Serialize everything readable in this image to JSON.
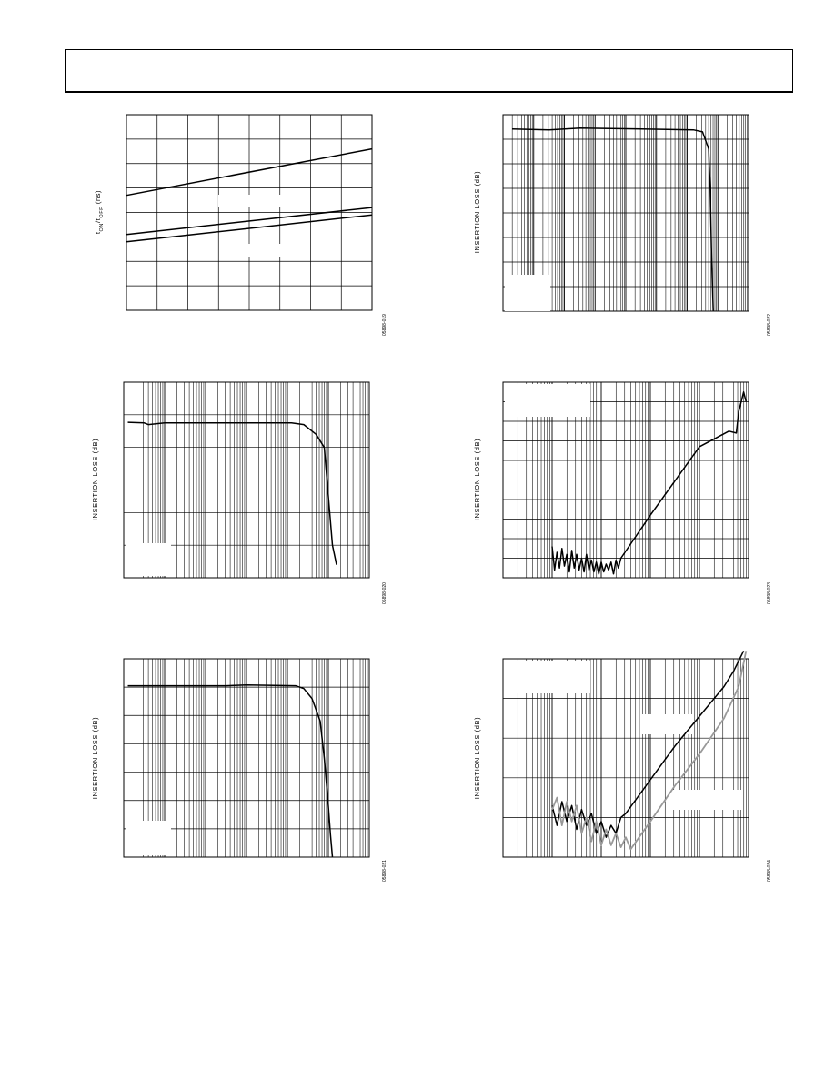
{
  "page": {
    "header_text": ""
  },
  "chart_data": [
    {
      "id": "fig-ton-toff",
      "type": "line",
      "title": "",
      "ylabel": "tON/tOFF (ns)",
      "ylabel_main": "t",
      "ylabel_sub1": "ON",
      "ylabel_mid": "/t",
      "ylabel_sub2": "OFF",
      "ylabel_unit": " (ns)",
      "xlabel": "",
      "xscale": "linear",
      "figure_id": "05898-019",
      "x_range": [
        0,
        8
      ],
      "y_range": [
        0,
        8
      ],
      "grid": {
        "x_divisions": 8,
        "y_divisions": 8
      },
      "series": [
        {
          "values": [
            [
              0,
              4.7
            ],
            [
              8,
              6.6
            ]
          ]
        },
        {
          "values": [
            [
              0,
              3.1
            ],
            [
              8,
              4.2
            ]
          ]
        },
        {
          "values": [
            [
              0,
              2.8
            ],
            [
              8,
              3.9
            ]
          ]
        }
      ],
      "legend_boxes": 2
    },
    {
      "id": "fig-insertion-loss-a",
      "type": "line",
      "title": "",
      "ylabel": "INSERTION LOSS (dB)",
      "xlabel": "",
      "xscale": "log",
      "figure_id": "05898-022",
      "x_decades": 8,
      "y_divisions": 8,
      "series": [
        {
          "values": [
            [
              0.3,
              7.42
            ],
            [
              1.5,
              7.38
            ],
            [
              2.5,
              7.45
            ],
            [
              4.5,
              7.42
            ],
            [
              6.2,
              7.38
            ],
            [
              6.5,
              7.3
            ],
            [
              6.7,
              6.6
            ],
            [
              6.75,
              5.0
            ],
            [
              6.8,
              2.0
            ],
            [
              6.85,
              0.0
            ]
          ]
        }
      ],
      "legend_boxes": 1
    },
    {
      "id": "fig-insertion-loss-b",
      "type": "line",
      "title": "",
      "ylabel": "INSERTION LOSS (dB)",
      "xlabel": "",
      "xscale": "log",
      "figure_id": "05898-020",
      "x_decades": 6,
      "y_divisions": 6,
      "series": [
        {
          "values": [
            [
              0.1,
              4.77
            ],
            [
              0.5,
              4.75
            ],
            [
              0.6,
              4.7
            ],
            [
              1.0,
              4.75
            ],
            [
              3.0,
              4.75
            ],
            [
              4.1,
              4.75
            ],
            [
              4.4,
              4.7
            ],
            [
              4.7,
              4.4
            ],
            [
              4.9,
              4.0
            ],
            [
              5.0,
              2.5
            ],
            [
              5.1,
              1.0
            ],
            [
              5.2,
              0.4
            ]
          ]
        }
      ],
      "legend_boxes": 1
    },
    {
      "id": "fig-crosstalk-a",
      "type": "line",
      "title": "",
      "ylabel": "INSERTION LOSS (dB)",
      "xlabel": "",
      "xscale": "log",
      "figure_id": "05898-023",
      "x_decades": 5,
      "y_divisions": 10,
      "series": [
        {
          "values": [
            [
              1.0,
              1.6
            ],
            [
              1.05,
              0.4
            ],
            [
              1.1,
              1.3
            ],
            [
              1.15,
              0.5
            ],
            [
              1.2,
              1.5
            ],
            [
              1.25,
              0.6
            ],
            [
              1.3,
              1.2
            ],
            [
              1.35,
              0.3
            ],
            [
              1.4,
              1.4
            ],
            [
              1.45,
              0.5
            ],
            [
              1.5,
              1.2
            ],
            [
              1.55,
              0.4
            ],
            [
              1.6,
              1.0
            ],
            [
              1.65,
              0.3
            ],
            [
              1.7,
              1.2
            ],
            [
              1.75,
              0.4
            ],
            [
              1.8,
              0.9
            ],
            [
              1.85,
              0.3
            ],
            [
              1.9,
              0.8
            ],
            [
              1.95,
              0.2
            ],
            [
              2.0,
              0.8
            ],
            [
              2.05,
              0.3
            ],
            [
              2.1,
              0.7
            ],
            [
              2.15,
              0.4
            ],
            [
              2.2,
              0.8
            ],
            [
              2.25,
              0.2
            ],
            [
              2.3,
              0.9
            ],
            [
              2.35,
              0.5
            ],
            [
              2.4,
              1.0
            ],
            [
              3.0,
              3.2
            ],
            [
              4.0,
              6.7
            ],
            [
              4.6,
              7.5
            ],
            [
              4.75,
              7.4
            ],
            [
              4.8,
              8.5
            ],
            [
              4.9,
              9.5
            ],
            [
              4.95,
              9.0
            ]
          ]
        }
      ],
      "legend_boxes": 1
    },
    {
      "id": "fig-insertion-loss-c",
      "type": "line",
      "title": "",
      "ylabel": "INSERTION LOSS (dB)",
      "xlabel": "",
      "xscale": "log",
      "figure_id": "05898-021",
      "x_decades": 6,
      "y_divisions": 7,
      "series": [
        {
          "values": [
            [
              0.1,
              6.05
            ],
            [
              1.0,
              6.05
            ],
            [
              2.5,
              6.05
            ],
            [
              3.0,
              6.08
            ],
            [
              4.2,
              6.05
            ],
            [
              4.4,
              5.95
            ],
            [
              4.6,
              5.6
            ],
            [
              4.8,
              4.8
            ],
            [
              4.9,
              3.5
            ],
            [
              5.0,
              1.8
            ],
            [
              5.05,
              0.8
            ],
            [
              5.1,
              0.0
            ]
          ]
        }
      ],
      "legend_boxes": 1
    },
    {
      "id": "fig-crosstalk-b",
      "type": "line",
      "title": "",
      "ylabel": "INSERTION LOSS (dB)",
      "xlabel": "",
      "xscale": "log",
      "figure_id": "05898-024",
      "x_decades": 5,
      "y_divisions": 5,
      "series": [
        {
          "color": "#000000",
          "values": [
            [
              1.0,
              1.3
            ],
            [
              1.1,
              0.8
            ],
            [
              1.2,
              1.4
            ],
            [
              1.3,
              0.9
            ],
            [
              1.4,
              1.3
            ],
            [
              1.5,
              0.7
            ],
            [
              1.6,
              1.2
            ],
            [
              1.7,
              0.8
            ],
            [
              1.8,
              1.1
            ],
            [
              1.9,
              0.6
            ],
            [
              2.0,
              0.9
            ],
            [
              2.1,
              0.5
            ],
            [
              2.2,
              0.8
            ],
            [
              2.3,
              0.6
            ],
            [
              2.4,
              1.0
            ],
            [
              2.5,
              1.1
            ],
            [
              3.5,
              2.8
            ],
            [
              4.5,
              4.3
            ],
            [
              4.7,
              4.7
            ],
            [
              4.9,
              5.2
            ]
          ]
        },
        {
          "color": "#999999",
          "values": [
            [
              1.0,
              1.2
            ],
            [
              1.1,
              1.5
            ],
            [
              1.2,
              0.8
            ],
            [
              1.3,
              1.4
            ],
            [
              1.4,
              0.9
            ],
            [
              1.5,
              1.3
            ],
            [
              1.6,
              0.6
            ],
            [
              1.7,
              1.0
            ],
            [
              1.8,
              0.4
            ],
            [
              1.9,
              0.9
            ],
            [
              2.0,
              0.3
            ],
            [
              2.1,
              0.7
            ],
            [
              2.2,
              0.3
            ],
            [
              2.3,
              0.6
            ],
            [
              2.4,
              0.25
            ],
            [
              2.5,
              0.5
            ],
            [
              2.6,
              0.2
            ],
            [
              2.8,
              0.55
            ],
            [
              3.0,
              0.9
            ],
            [
              3.5,
              1.8
            ],
            [
              4.0,
              2.6
            ],
            [
              4.5,
              3.5
            ],
            [
              4.8,
              4.3
            ],
            [
              4.95,
              5.2
            ]
          ]
        }
      ],
      "legend_boxes": 3
    }
  ]
}
